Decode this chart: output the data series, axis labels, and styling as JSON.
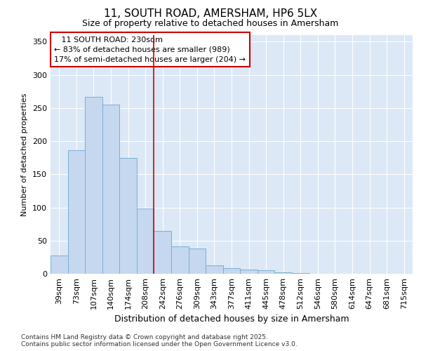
{
  "title1": "11, SOUTH ROAD, AMERSHAM, HP6 5LX",
  "title2": "Size of property relative to detached houses in Amersham",
  "xlabel": "Distribution of detached houses by size in Amersham",
  "ylabel": "Number of detached properties",
  "categories": [
    "39sqm",
    "73sqm",
    "107sqm",
    "140sqm",
    "174sqm",
    "208sqm",
    "242sqm",
    "276sqm",
    "309sqm",
    "343sqm",
    "377sqm",
    "411sqm",
    "445sqm",
    "478sqm",
    "512sqm",
    "546sqm",
    "580sqm",
    "614sqm",
    "647sqm",
    "681sqm",
    "715sqm"
  ],
  "values": [
    28,
    186,
    267,
    255,
    175,
    99,
    65,
    41,
    38,
    13,
    9,
    6,
    5,
    2,
    1,
    0,
    0,
    0,
    0,
    0,
    0
  ],
  "bar_color": "#c5d8f0",
  "bar_edge_color": "#7aafd4",
  "vline_x_index": 6,
  "vline_color": "#cc0000",
  "ylim": [
    0,
    360
  ],
  "yticks": [
    0,
    50,
    100,
    150,
    200,
    250,
    300,
    350
  ],
  "annotation_title": "11 SOUTH ROAD: 230sqm",
  "annotation_line1": "← 83% of detached houses are smaller (989)",
  "annotation_line2": "17% of semi-detached houses are larger (204) →",
  "annotation_box_edgecolor": "#cc0000",
  "bg_color": "#dce8f5",
  "fig_bg_color": "#ffffff",
  "footer1": "Contains HM Land Registry data © Crown copyright and database right 2025.",
  "footer2": "Contains public sector information licensed under the Open Government Licence v3.0.",
  "title1_fontsize": 11,
  "title2_fontsize": 9,
  "ylabel_fontsize": 8,
  "xlabel_fontsize": 9,
  "tick_fontsize": 8,
  "footer_fontsize": 6.5,
  "ann_fontsize": 8
}
